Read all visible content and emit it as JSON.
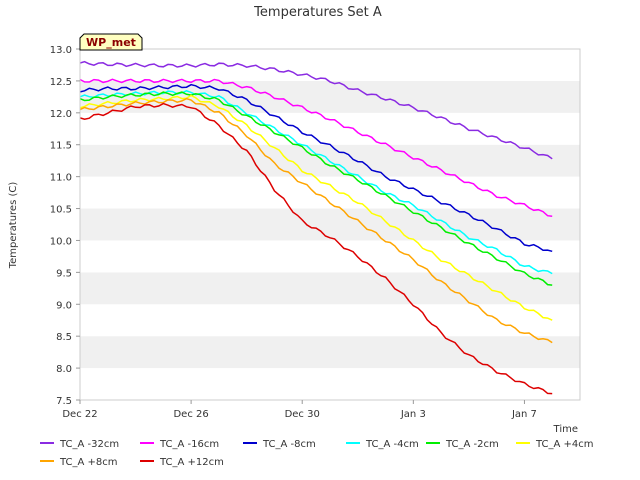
{
  "chart_data": {
    "type": "line",
    "title": "Temperatures Set A",
    "xlabel": "Time",
    "ylabel": "Temperatures (C)",
    "site_label": "WP_met",
    "x_start": "2023-12-22",
    "x_end": "2024-01-09",
    "xlim": [
      0,
      18.0
    ],
    "ylim": [
      7.5,
      13.0
    ],
    "yticks": [
      "7.5",
      "8.0",
      "8.5",
      "9.0",
      "9.5",
      "10.0",
      "10.5",
      "11.0",
      "11.5",
      "12.0",
      "12.5",
      "13.0"
    ],
    "xtick_labels": [
      "Dec 22",
      "Dec 26",
      "Dec 30",
      "Jan 3",
      "Jan 7"
    ],
    "xtick_values": [
      0,
      4,
      8,
      12,
      16
    ],
    "grid": "horizontal bands",
    "legend_position": "bottom",
    "x": [
      0,
      1,
      2,
      3,
      4,
      5,
      6,
      7,
      8,
      9,
      10,
      11,
      12,
      13,
      14,
      15,
      16,
      17
    ],
    "series": [
      {
        "name": "TC_A -32cm",
        "color": "#8a2be2",
        "values": [
          12.78,
          12.76,
          12.75,
          12.74,
          12.74,
          12.76,
          12.74,
          12.68,
          12.6,
          12.5,
          12.35,
          12.22,
          12.08,
          11.92,
          11.75,
          11.6,
          11.45,
          11.28
        ]
      },
      {
        "name": "TC_A -16cm",
        "color": "#ff00ff",
        "values": [
          12.5,
          12.5,
          12.5,
          12.5,
          12.5,
          12.5,
          12.4,
          12.25,
          12.08,
          11.9,
          11.7,
          11.5,
          11.3,
          11.1,
          10.9,
          10.7,
          10.55,
          10.38
        ]
      },
      {
        "name": "TC_A -8cm",
        "color": "#0000cd",
        "values": [
          12.35,
          12.38,
          12.38,
          12.4,
          12.42,
          12.38,
          12.2,
          11.95,
          11.7,
          11.48,
          11.25,
          11.0,
          10.8,
          10.6,
          10.4,
          10.18,
          9.95,
          9.83
        ]
      },
      {
        "name": "TC_A -4cm",
        "color": "#00ffff",
        "values": [
          12.25,
          12.28,
          12.3,
          12.32,
          12.32,
          12.25,
          12.0,
          11.75,
          11.5,
          11.25,
          11.0,
          10.75,
          10.55,
          10.3,
          10.05,
          9.85,
          9.6,
          9.48
        ]
      },
      {
        "name": "TC_A -2cm",
        "color": "#00ee00",
        "values": [
          12.2,
          12.25,
          12.28,
          12.3,
          12.3,
          12.2,
          11.95,
          11.7,
          11.45,
          11.18,
          10.95,
          10.7,
          10.45,
          10.2,
          9.95,
          9.72,
          9.48,
          9.3
        ]
      },
      {
        "name": "TC_A +4cm",
        "color": "#ffff00",
        "values": [
          12.1,
          12.15,
          12.2,
          12.22,
          12.25,
          12.1,
          11.8,
          11.45,
          11.1,
          10.85,
          10.6,
          10.3,
          10.0,
          9.7,
          9.45,
          9.2,
          8.95,
          8.75
        ]
      },
      {
        "name": "TC_A +8cm",
        "color": "#ffa500",
        "values": [
          12.05,
          12.1,
          12.15,
          12.18,
          12.2,
          12.0,
          11.65,
          11.2,
          10.9,
          10.6,
          10.3,
          10.0,
          9.7,
          9.35,
          9.05,
          8.75,
          8.55,
          8.4
        ]
      },
      {
        "name": "TC_A +12cm",
        "color": "#dd0000",
        "values": [
          11.9,
          12.0,
          12.1,
          12.12,
          12.1,
          11.8,
          11.4,
          10.8,
          10.3,
          10.05,
          9.75,
          9.4,
          9.0,
          8.55,
          8.2,
          7.95,
          7.75,
          7.6
        ]
      }
    ]
  }
}
